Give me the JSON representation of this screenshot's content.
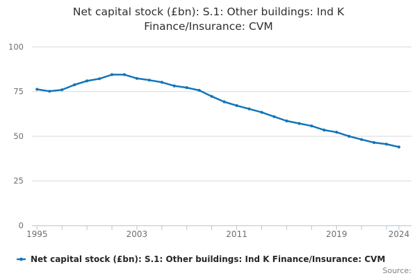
{
  "chart_data": {
    "type": "line",
    "title": "Net capital stock (£bn): S.1: Other buildings: Ind K Finance/Insurance: CVM",
    "title_lines": [
      "Net capital stock (£bn): S.1: Other buildings: Ind K",
      "Finance/Insurance: CVM"
    ],
    "series": [
      {
        "name": "Net capital stock (£bn): S.1: Other buildings: Ind K Finance/Insurance: CVM",
        "color": "#1175ba",
        "x": [
          1995,
          1996,
          1997,
          1998,
          1999,
          2000,
          2001,
          2002,
          2003,
          2004,
          2005,
          2006,
          2007,
          2008,
          2009,
          2010,
          2011,
          2012,
          2013,
          2014,
          2015,
          2016,
          2017,
          2018,
          2019,
          2020,
          2021,
          2022,
          2023,
          2024
        ],
        "values": [
          76.3,
          75.2,
          76.0,
          78.8,
          81.0,
          82.2,
          84.5,
          84.5,
          82.4,
          81.4,
          80.2,
          78.2,
          77.2,
          75.7,
          72.3,
          69.3,
          67.2,
          65.3,
          63.4,
          61.0,
          58.6,
          57.2,
          55.8,
          53.5,
          52.3,
          50.0,
          48.2,
          46.5,
          45.6,
          44.0
        ]
      }
    ],
    "x_range": [
      1995,
      2024
    ],
    "x_tick_step_years": 2,
    "x_labeled_ticks": [
      "1995",
      "2003",
      "2011",
      "2019",
      "2024"
    ],
    "x_labeled_tick_years": [
      1995,
      2003,
      2011,
      2019,
      2024
    ],
    "y_ticks": [
      "0",
      "25",
      "50",
      "75",
      "100"
    ],
    "y_tick_values": [
      0,
      25,
      50,
      75,
      100
    ],
    "ylim": [
      0,
      100
    ],
    "grid": "horizontal",
    "legend_position": "bottom-left",
    "source_label": "Source:",
    "colors": {
      "line": "#1175ba",
      "gridline": "#d9d9d9",
      "axis": "#b3c3d3",
      "tick_label": "#6e6e6e",
      "title": "#2e2e2e",
      "legend_text": "#262626",
      "source_text": "#7f7f7f"
    }
  }
}
